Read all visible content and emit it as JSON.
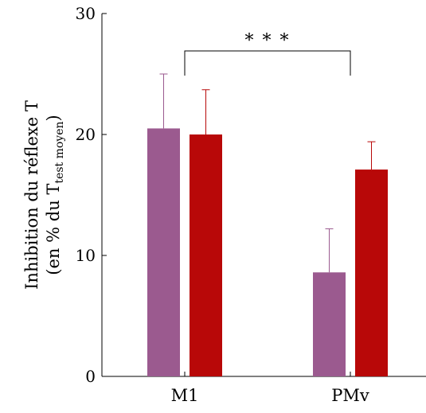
{
  "chart_data": {
    "type": "bar",
    "categories": [
      "M1",
      "PMv"
    ],
    "series": [
      {
        "values": [
          20.5,
          8.6
        ],
        "errors": [
          4.5,
          3.6
        ],
        "color": "#9b5a8f"
      },
      {
        "values": [
          20.0,
          17.1
        ],
        "errors": [
          3.7,
          2.3
        ],
        "color": "#b80808"
      }
    ],
    "ylim": [
      0,
      30
    ],
    "yticks": [
      "0",
      "10",
      "20",
      "30"
    ],
    "ylabel": {
      "line1": "Inhibition du réflexe T",
      "line2_prefix": "(en % du T",
      "line2_subscript": "test moyen",
      "line2_suffix": ")"
    },
    "significance": {
      "label": "* * *",
      "between": [
        "M1",
        "PMv"
      ]
    },
    "grid": false,
    "legend": "none"
  }
}
